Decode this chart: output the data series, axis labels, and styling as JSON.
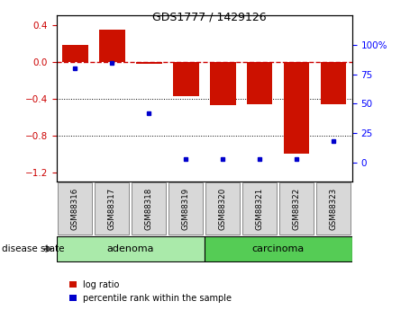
{
  "title": "GDS1777 / 1429126",
  "samples": [
    "GSM88316",
    "GSM88317",
    "GSM88318",
    "GSM88319",
    "GSM88320",
    "GSM88321",
    "GSM88322",
    "GSM88323"
  ],
  "log_ratio": [
    0.18,
    0.35,
    -0.02,
    -0.38,
    -0.47,
    -0.46,
    -1.0,
    -0.46
  ],
  "percentile_rank": [
    80,
    85,
    42,
    3,
    3,
    3,
    3,
    18
  ],
  "groups": [
    {
      "label": "adenoma",
      "start": 0,
      "end": 4,
      "color": "#AAEAAA"
    },
    {
      "label": "carcinoma",
      "start": 4,
      "end": 8,
      "color": "#55CC55"
    }
  ],
  "ylim_left": [
    -1.3,
    0.5
  ],
  "ylim_right": [
    -16.25,
    125
  ],
  "yticks_left": [
    -1.2,
    -0.8,
    -0.4,
    0.0,
    0.4
  ],
  "yticks_right": [
    0,
    25,
    50,
    75,
    100
  ],
  "bar_color": "#CC1100",
  "dot_color": "#0000CC",
  "zero_line_color": "#CC0000",
  "background_color": "#FFFFFF",
  "label_log_ratio": "log ratio",
  "label_percentile": "percentile rank within the sample",
  "disease_state_label": "disease state"
}
